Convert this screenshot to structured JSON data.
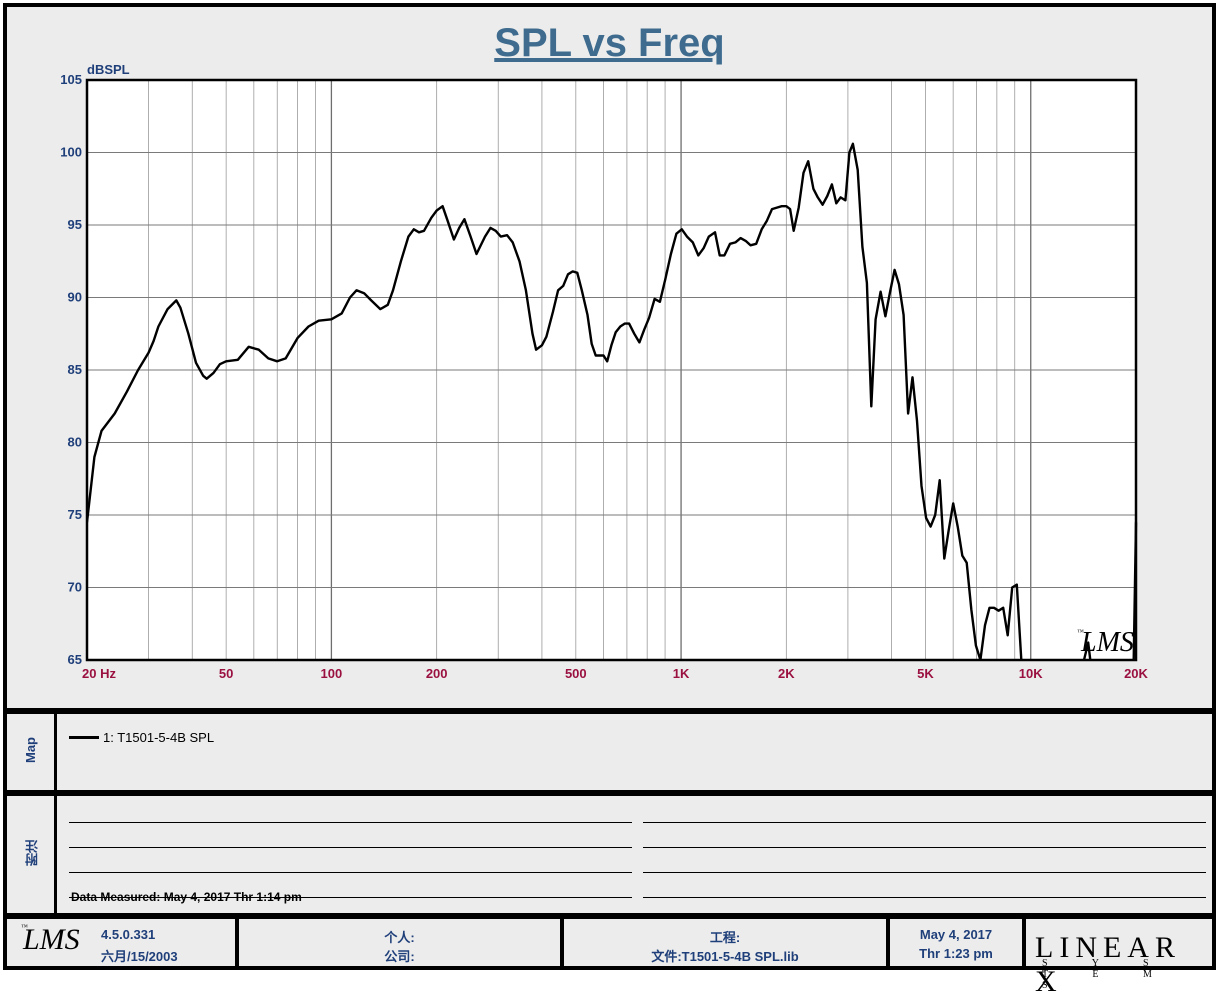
{
  "chart_data": {
    "type": "line",
    "title": "SPL vs Freq",
    "ylabel": "dBSPL",
    "xscale": "log",
    "xlim": [
      20,
      20000
    ],
    "ylim": [
      65,
      105
    ],
    "yticks": [
      "105",
      "100",
      "95",
      "90",
      "85",
      "80",
      "75",
      "70",
      "65"
    ],
    "xticks": [
      {
        "value": 20,
        "label": "20  Hz"
      },
      {
        "value": 50,
        "label": "50"
      },
      {
        "value": 100,
        "label": "100"
      },
      {
        "value": 200,
        "label": "200"
      },
      {
        "value": 500,
        "label": "500"
      },
      {
        "value": 1000,
        "label": "1K"
      },
      {
        "value": 2000,
        "label": "2K"
      },
      {
        "value": 5000,
        "label": "5K"
      },
      {
        "value": 10000,
        "label": "10K"
      },
      {
        "value": 20000,
        "label": "20K"
      }
    ],
    "grid": true,
    "series": [
      {
        "name": "1: T1501-5-4B  SPL",
        "color": "#000000",
        "points": [
          [
            20,
            74.5
          ],
          [
            21,
            79
          ],
          [
            22,
            80.8
          ],
          [
            24,
            82
          ],
          [
            26,
            83.5
          ],
          [
            28,
            85
          ],
          [
            30,
            86.2
          ],
          [
            31,
            87
          ],
          [
            32,
            88
          ],
          [
            34,
            89.2
          ],
          [
            36,
            89.8
          ],
          [
            37,
            89.3
          ],
          [
            39,
            87.5
          ],
          [
            41,
            85.5
          ],
          [
            43,
            84.6
          ],
          [
            44,
            84.4
          ],
          [
            46,
            84.8
          ],
          [
            48,
            85.4
          ],
          [
            50,
            85.6
          ],
          [
            54,
            85.7
          ],
          [
            58,
            86.6
          ],
          [
            62,
            86.4
          ],
          [
            66,
            85.8
          ],
          [
            70,
            85.6
          ],
          [
            74,
            85.8
          ],
          [
            80,
            87.2
          ],
          [
            86,
            88
          ],
          [
            92,
            88.4
          ],
          [
            100,
            88.5
          ],
          [
            107,
            88.9
          ],
          [
            113,
            90
          ],
          [
            118,
            90.5
          ],
          [
            124,
            90.3
          ],
          [
            130,
            89.8
          ],
          [
            138,
            89.2
          ],
          [
            145,
            89.5
          ],
          [
            150,
            90.5
          ],
          [
            158,
            92.5
          ],
          [
            166,
            94.2
          ],
          [
            172,
            94.7
          ],
          [
            178,
            94.5
          ],
          [
            184,
            94.6
          ],
          [
            193,
            95.5
          ],
          [
            200,
            96
          ],
          [
            208,
            96.3
          ],
          [
            215,
            95.3
          ],
          [
            224,
            94
          ],
          [
            232,
            94.8
          ],
          [
            240,
            95.4
          ],
          [
            250,
            94.2
          ],
          [
            260,
            93
          ],
          [
            275,
            94.2
          ],
          [
            285,
            94.8
          ],
          [
            295,
            94.6
          ],
          [
            305,
            94.2
          ],
          [
            318,
            94.3
          ],
          [
            330,
            93.8
          ],
          [
            345,
            92.5
          ],
          [
            360,
            90.5
          ],
          [
            376,
            87.5
          ],
          [
            385,
            86.4
          ],
          [
            400,
            86.7
          ],
          [
            412,
            87.3
          ],
          [
            430,
            89
          ],
          [
            445,
            90.5
          ],
          [
            460,
            90.8
          ],
          [
            475,
            91.6
          ],
          [
            490,
            91.8
          ],
          [
            505,
            91.7
          ],
          [
            520,
            90.5
          ],
          [
            540,
            88.8
          ],
          [
            555,
            86.8
          ],
          [
            570,
            86
          ],
          [
            585,
            86
          ],
          [
            600,
            86
          ],
          [
            615,
            85.6
          ],
          [
            632,
            86.7
          ],
          [
            650,
            87.6
          ],
          [
            670,
            88
          ],
          [
            690,
            88.2
          ],
          [
            710,
            88.2
          ],
          [
            735,
            87.5
          ],
          [
            760,
            86.9
          ],
          [
            785,
            87.8
          ],
          [
            810,
            88.6
          ],
          [
            840,
            89.9
          ],
          [
            870,
            89.7
          ],
          [
            900,
            91.2
          ],
          [
            935,
            93
          ],
          [
            970,
            94.4
          ],
          [
            1005,
            94.7
          ],
          [
            1040,
            94.2
          ],
          [
            1080,
            93.8
          ],
          [
            1120,
            92.9
          ],
          [
            1160,
            93.4
          ],
          [
            1200,
            94.2
          ],
          [
            1250,
            94.5
          ],
          [
            1290,
            92.9
          ],
          [
            1330,
            92.9
          ],
          [
            1380,
            93.7
          ],
          [
            1430,
            93.8
          ],
          [
            1480,
            94.1
          ],
          [
            1530,
            93.9
          ],
          [
            1580,
            93.6
          ],
          [
            1640,
            93.7
          ],
          [
            1700,
            94.7
          ],
          [
            1760,
            95.3
          ],
          [
            1820,
            96.1
          ],
          [
            1880,
            96.2
          ],
          [
            1940,
            96.3
          ],
          [
            2000,
            96.3
          ],
          [
            2050,
            96.1
          ],
          [
            2100,
            94.6
          ],
          [
            2170,
            96.2
          ],
          [
            2240,
            98.6
          ],
          [
            2310,
            99.4
          ],
          [
            2390,
            97.5
          ],
          [
            2460,
            96.9
          ],
          [
            2540,
            96.4
          ],
          [
            2620,
            97
          ],
          [
            2700,
            97.8
          ],
          [
            2780,
            96.5
          ],
          [
            2860,
            96.9
          ],
          [
            2950,
            96.7
          ],
          [
            3030,
            100
          ],
          [
            3100,
            100.6
          ],
          [
            3200,
            98.8
          ],
          [
            3300,
            93.5
          ],
          [
            3400,
            91
          ],
          [
            3500,
            82.5
          ],
          [
            3600,
            88.5
          ],
          [
            3720,
            90.4
          ],
          [
            3840,
            88.7
          ],
          [
            3960,
            90.4
          ],
          [
            4080,
            91.9
          ],
          [
            4200,
            90.9
          ],
          [
            4330,
            88.8
          ],
          [
            4460,
            82
          ],
          [
            4590,
            84.5
          ],
          [
            4730,
            81.5
          ],
          [
            4870,
            77
          ],
          [
            5020,
            74.8
          ],
          [
            5170,
            74.2
          ],
          [
            5330,
            75
          ],
          [
            5490,
            77.4
          ],
          [
            5660,
            72
          ],
          [
            5830,
            74
          ],
          [
            6000,
            75.8
          ],
          [
            6180,
            74.2
          ],
          [
            6370,
            72.2
          ],
          [
            6560,
            71.7
          ],
          [
            6760,
            68.5
          ],
          [
            6970,
            66
          ],
          [
            7180,
            65
          ],
          [
            7400,
            67.4
          ],
          [
            7620,
            68.6
          ],
          [
            7850,
            68.6
          ],
          [
            8090,
            68.4
          ],
          [
            8340,
            68.6
          ],
          [
            8590,
            66.7
          ],
          [
            8850,
            70
          ],
          [
            9120,
            70.2
          ],
          [
            9400,
            65
          ]
        ]
      }
    ],
    "tail": {
      "points": [
        [
          19700,
          65
        ],
        [
          20000,
          74.5
        ]
      ]
    },
    "mini_mark": {
      "points": [
        [
          14200,
          65
        ],
        [
          14600,
          66.2
        ],
        [
          14800,
          65
        ]
      ]
    }
  },
  "legend": {
    "map_label": "Map",
    "entry": "1: T1501-5-4B  SPL"
  },
  "notes": {
    "label": "附注",
    "data_measured": "Data Measured: May  4, 2017  Thr  1:14 pm"
  },
  "footer": {
    "version": "4.5.0.331",
    "version_date": "六月/15/2003",
    "person_label": "个人:",
    "company_label": "公司:",
    "project_label": "工程:",
    "file_label": "文件:T1501-5-4B  SPL.lib",
    "date": "May  4, 2017",
    "time": "Thr  1:23 pm",
    "brand": "LINEAR X",
    "brand_sub": "S Y S T E M S",
    "logo_text": "LMS",
    "tm": "™"
  },
  "watermark": {
    "text": "LMS",
    "tm": "™"
  },
  "colors": {
    "title": "#3e6b8e",
    "axis_y": "#1f3f7a",
    "axis_x": "#9a1040",
    "grid": "#9a9a9a",
    "bg": "#ececec"
  }
}
